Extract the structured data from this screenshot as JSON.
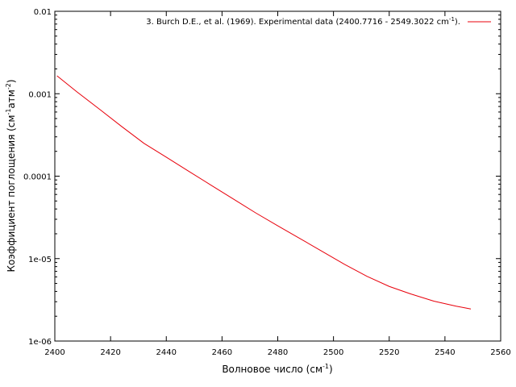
{
  "chart_data": {
    "type": "line",
    "xlabel_main": "Волновое число (см",
    "xlabel_sup": "-1",
    "xlabel_end": ")",
    "ylabel_main": "Коэффициент поглощения (см",
    "ylabel_sup1": "-1",
    "ylabel_mid": "атм",
    "ylabel_sup2": "-2",
    "ylabel_end": ")",
    "xlim": [
      2400,
      2560
    ],
    "ylim": [
      1e-06,
      0.01
    ],
    "yscale": "log",
    "grid": false,
    "legend_position": "top-right",
    "x_tick_labels": [
      "2400",
      "2420",
      "2440",
      "2460",
      "2480",
      "2500",
      "2520",
      "2540",
      "2560"
    ],
    "y_tick_labels": [
      "1e-06",
      "1e-05",
      "0.0001",
      "0.001",
      "0.01"
    ],
    "series": [
      {
        "name": "3. Burch D.E., et al. (1969). Experimental data (2400.7716 - 2549.3022 cm",
        "name_sup": "-1",
        "name_end": ").",
        "color": "#e8000b",
        "x": [
          2400.77,
          2408,
          2416,
          2424,
          2432,
          2440,
          2448,
          2456,
          2464,
          2472,
          2480,
          2488,
          2496,
          2504,
          2512,
          2520,
          2528,
          2536,
          2544,
          2549.3
        ],
        "y": [
          0.00165,
          0.00105,
          0.00065,
          0.0004,
          0.00025,
          0.00017,
          0.000115,
          7.8e-05,
          5.3e-05,
          3.6e-05,
          2.5e-05,
          1.75e-05,
          1.22e-05,
          8.5e-06,
          6.1e-06,
          4.6e-06,
          3.7e-06,
          3.05e-06,
          2.65e-06,
          2.45e-06
        ]
      }
    ]
  }
}
